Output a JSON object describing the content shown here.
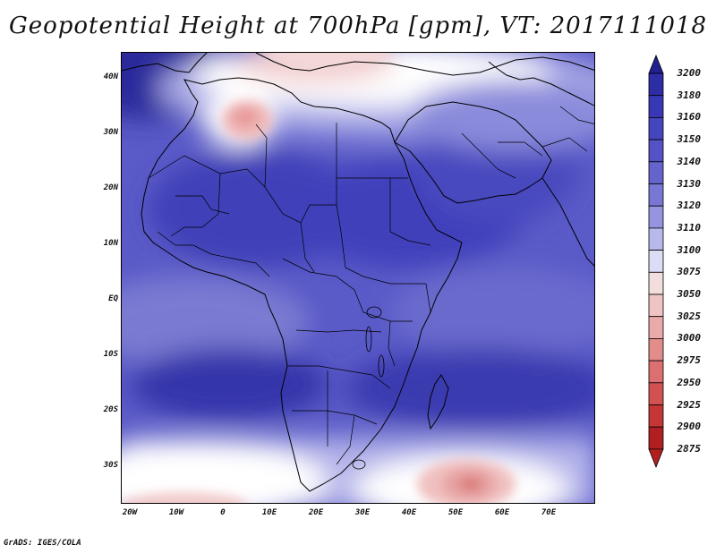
{
  "title": "Geopotential Height at 700hPa [gpm], VT: 2017111018",
  "credit": "GrADS: IGES/COLA",
  "map": {
    "lat_labels": [
      "40N",
      "30N",
      "20N",
      "10N",
      "EQ",
      "10S",
      "20S",
      "30S"
    ],
    "lon_labels": [
      "20W",
      "10W",
      "0",
      "10E",
      "20E",
      "30E",
      "40E",
      "50E",
      "60E",
      "70E"
    ]
  },
  "colorbar": {
    "levels": [
      "3200",
      "3180",
      "3160",
      "3150",
      "3140",
      "3130",
      "3120",
      "3110",
      "3100",
      "3075",
      "3050",
      "3025",
      "3000",
      "2975",
      "2950",
      "2925",
      "2900",
      "2875"
    ],
    "colors": [
      "#20208f",
      "#2d2da6",
      "#3838b6",
      "#4545bf",
      "#5353c6",
      "#6464cc",
      "#7878d4",
      "#9494df",
      "#b8b8eb",
      "#dcdcf6",
      "#f3dede",
      "#f0c4c4",
      "#eaaaaa",
      "#e38c8c",
      "#dc7070",
      "#d25252",
      "#c53636",
      "#b02020"
    ]
  }
}
